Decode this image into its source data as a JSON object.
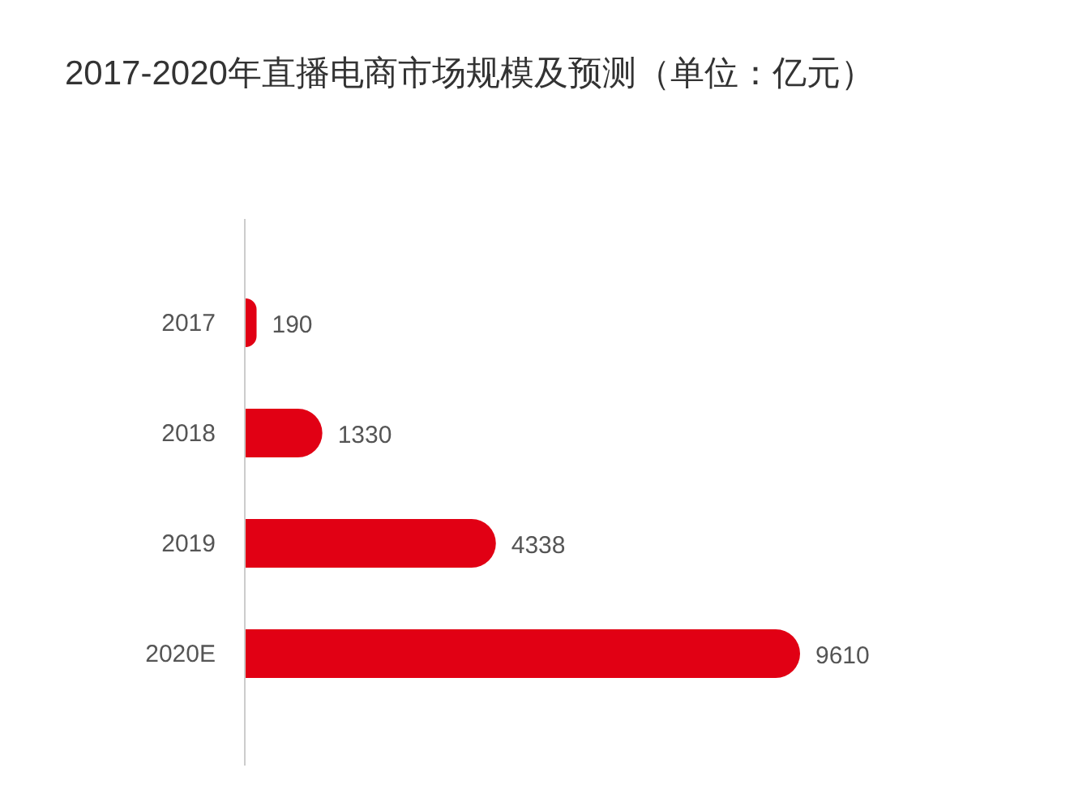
{
  "chart_data": {
    "type": "bar",
    "orientation": "horizontal",
    "title": "2017-2020年直播电商市场规模及预测（单位：亿元）",
    "categories": [
      "2017",
      "2018",
      "2019",
      "2020E"
    ],
    "values": [
      190,
      1330,
      4338,
      9610
    ],
    "color": "#e10014",
    "data_labels": true
  }
}
